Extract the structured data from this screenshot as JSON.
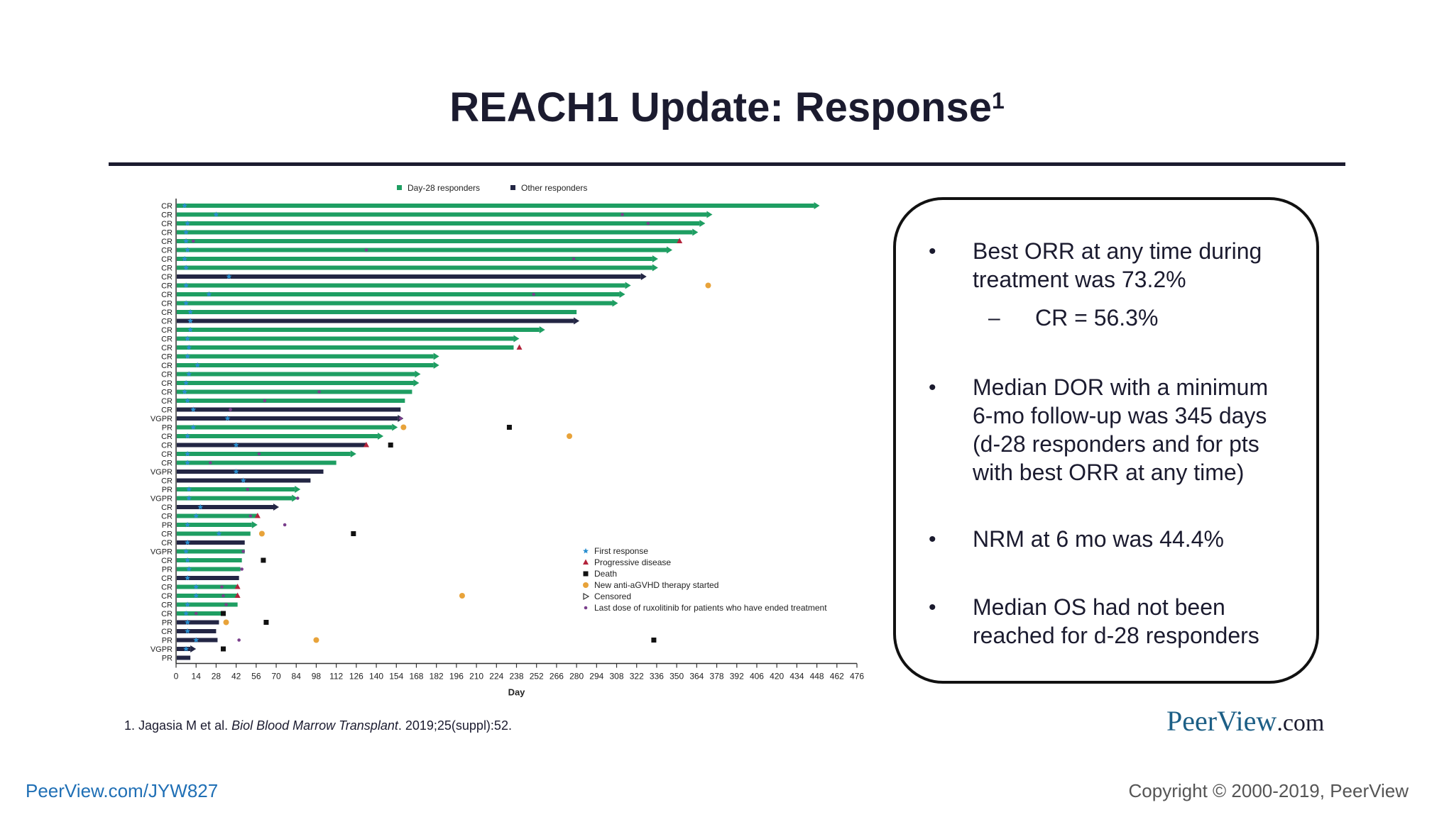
{
  "slide": {
    "title": "REACH1 Update: Response",
    "title_sup": "1",
    "bullets": [
      {
        "text_l1": "Best ORR at any time during",
        "text_l2": "treatment was 73.2%"
      },
      {
        "sub": "CR = 56.3%"
      },
      {
        "text_l1": "Median DOR with a minimum",
        "text_l2": "6-mo follow-up was 345 days",
        "text_l3": "(d-28 responders and for pts",
        "text_l4": "with best ORR at any time)"
      },
      {
        "text_l1": "NRM at 6 mo was 44.4%"
      },
      {
        "text_l1": "Median OS had not been",
        "text_l2": "reached for d-28 responders"
      }
    ],
    "bullet_dot": "•",
    "sub_dash": "–",
    "reference_pre": "1. Jagasia M et al. ",
    "reference_journal": "Biol Blood Marrow Transplant",
    "reference_post": ". 2019;25(suppl):52.",
    "logo_main": "PeerView",
    "logo_suffix": ".com",
    "footer_link": "PeerView.com/JYW827",
    "copyright": "Copyright © 2000-2019, PeerView"
  },
  "chart_data": {
    "type": "bar",
    "orientation": "horizontal swimmer",
    "xlabel": "Day",
    "xlim": [
      0,
      476
    ],
    "xticks": [
      0,
      14,
      28,
      42,
      56,
      70,
      84,
      98,
      112,
      126,
      140,
      154,
      168,
      182,
      196,
      210,
      224,
      238,
      252,
      266,
      280,
      294,
      308,
      322,
      336,
      350,
      364,
      378,
      392,
      406,
      420,
      434,
      448,
      462,
      476
    ],
    "legend_top": [
      "Day-28 responders",
      "Other responders"
    ],
    "legend_markers": [
      "First response",
      "Progressive disease",
      "Death",
      "New anti-aGVHD therapy started",
      "Censored",
      "Last dose of ruxolitinib for patients who have ended treatment"
    ],
    "colors": {
      "day28": "#1e9e62",
      "other": "#232644",
      "first_response": "#2a8fd0",
      "progressive": "#b3233b",
      "death": "#111111",
      "new_therapy": "#e8a33a",
      "last_dose": "#7a3f8c"
    },
    "patients": [
      {
        "r": "CR",
        "e": 446,
        "g": "d",
        "arrow": true,
        "fr": 6
      },
      {
        "r": "CR",
        "e": 371,
        "g": "d",
        "arrow": true,
        "fr": 28,
        "ld": 312
      },
      {
        "r": "CR",
        "e": 366,
        "g": "d",
        "arrow": true,
        "fr": 8,
        "ld": 330
      },
      {
        "r": "CR",
        "e": 361,
        "g": "d",
        "arrow": true,
        "fr": 7
      },
      {
        "r": "CR",
        "e": 352,
        "g": "d",
        "pd": 352,
        "fr": 7,
        "ld": 12
      },
      {
        "r": "CR",
        "e": 343,
        "g": "d",
        "arrow": true,
        "fr": 8,
        "ld": 133
      },
      {
        "r": "CR",
        "e": 333,
        "g": "d",
        "arrow": true,
        "fr": 6,
        "ld": 278
      },
      {
        "r": "CR",
        "e": 333,
        "g": "d",
        "arrow": true,
        "fr": 7
      },
      {
        "r": "CR",
        "e": 325,
        "g": "o",
        "arrow": true,
        "fr": 37
      },
      {
        "r": "CR",
        "e": 314,
        "g": "d",
        "arrow": true,
        "fr": 7,
        "nt": 372
      },
      {
        "r": "CR",
        "e": 310,
        "g": "d",
        "arrow": true,
        "fr": 23,
        "ld": 250
      },
      {
        "r": "CR",
        "e": 305,
        "g": "d",
        "arrow": true,
        "fr": 7
      },
      {
        "r": "CR",
        "e": 280,
        "g": "d",
        "fr": 10
      },
      {
        "r": "CR",
        "e": 278,
        "g": "o",
        "arrow": true,
        "fr": 10
      },
      {
        "r": "CR",
        "e": 254,
        "g": "d",
        "arrow": true,
        "fr": 10
      },
      {
        "r": "CR",
        "e": 236,
        "g": "d",
        "arrow": true,
        "fr": 8
      },
      {
        "r": "CR",
        "e": 236,
        "g": "d",
        "pd": 240,
        "fr": 9
      },
      {
        "r": "CR",
        "e": 180,
        "g": "d",
        "arrow": true,
        "fr": 8
      },
      {
        "r": "CR",
        "e": 180,
        "g": "d",
        "arrow": true,
        "fr": 15
      },
      {
        "r": "CR",
        "e": 167,
        "g": "d",
        "arrow": true,
        "fr": 9
      },
      {
        "r": "CR",
        "e": 166,
        "g": "d",
        "arrow": true,
        "fr": 7
      },
      {
        "r": "CR",
        "e": 165,
        "g": "d",
        "fr": 6,
        "ld": 100
      },
      {
        "r": "CR",
        "e": 160,
        "g": "d",
        "fr": 8,
        "ld": 62
      },
      {
        "r": "CR",
        "e": 157,
        "g": "o",
        "fr": 12,
        "ld": 38
      },
      {
        "r": "VGPR",
        "e": 155,
        "g": "o",
        "arrow": true,
        "fr": 36,
        "ld": 157
      },
      {
        "r": "PR",
        "e": 151,
        "g": "d",
        "arrow": true,
        "fr": 12,
        "nt": 159,
        "dt": 233
      },
      {
        "r": "CR",
        "e": 141,
        "g": "d",
        "arrow": true,
        "fr": 8,
        "nt": 275
      },
      {
        "r": "CR",
        "e": 133,
        "g": "o",
        "pd": 133,
        "fr": 42,
        "dt": 150
      },
      {
        "r": "CR",
        "e": 122,
        "g": "d",
        "arrow": true,
        "fr": 8,
        "ld": 58
      },
      {
        "r": "CR",
        "e": 112,
        "g": "d",
        "fr": 8,
        "ld": 24
      },
      {
        "r": "VGPR",
        "e": 103,
        "g": "o",
        "fr": 42
      },
      {
        "r": "CR",
        "e": 94,
        "g": "o",
        "fr": 47
      },
      {
        "r": "PR",
        "e": 83,
        "g": "d",
        "arrow": true,
        "fr": 9,
        "ld": 50
      },
      {
        "r": "VGPR",
        "e": 81,
        "g": "d",
        "arrow": true,
        "fr": 9,
        "ld": 85
      },
      {
        "r": "CR",
        "e": 68,
        "g": "o",
        "arrow": true,
        "fr": 17
      },
      {
        "r": "CR",
        "e": 57,
        "g": "d",
        "pd": 57,
        "fr": 14,
        "ld": 52
      },
      {
        "r": "PR",
        "e": 53,
        "g": "d",
        "arrow": true,
        "fr": 8,
        "ld": 76
      },
      {
        "r": "CR",
        "e": 52,
        "g": "d",
        "fr": 30,
        "nt": 60,
        "dt": 124
      },
      {
        "r": "CR",
        "e": 48,
        "g": "o",
        "fr": 8
      },
      {
        "r": "VGPR",
        "e": 48,
        "g": "d",
        "fr": 7,
        "ld": 47
      },
      {
        "r": "CR",
        "e": 46,
        "g": "d",
        "fr": 8,
        "dt": 61
      },
      {
        "r": "PR",
        "e": 45,
        "g": "d",
        "fr": 9,
        "ld": 46
      },
      {
        "r": "CR",
        "e": 44,
        "g": "o",
        "fr": 8
      },
      {
        "r": "CR",
        "e": 43,
        "g": "d",
        "fr": 14,
        "pd": 43,
        "ld": 32
      },
      {
        "r": "CR",
        "e": 43,
        "g": "d",
        "fr": 14,
        "pd": 43,
        "ld": 33,
        "nt": 200
      },
      {
        "r": "CR",
        "e": 43,
        "g": "d",
        "fr": 8,
        "ld": 35
      },
      {
        "r": "CR",
        "e": 33,
        "g": "d",
        "fr": 7,
        "dt": 33,
        "ld": 14
      },
      {
        "r": "PR",
        "e": 30,
        "g": "o",
        "fr": 8,
        "nt": 35,
        "dt": 63
      },
      {
        "r": "CR",
        "e": 28,
        "g": "o",
        "fr": 8
      },
      {
        "r": "PR",
        "e": 29,
        "g": "o",
        "fr": 14,
        "ld": 44,
        "nt": 98,
        "dt": 334
      },
      {
        "r": "VGPR",
        "e": 10,
        "g": "o",
        "arrow": true,
        "fr": 7,
        "dt": 33
      },
      {
        "r": "PR",
        "e": 10,
        "g": "o"
      }
    ]
  }
}
